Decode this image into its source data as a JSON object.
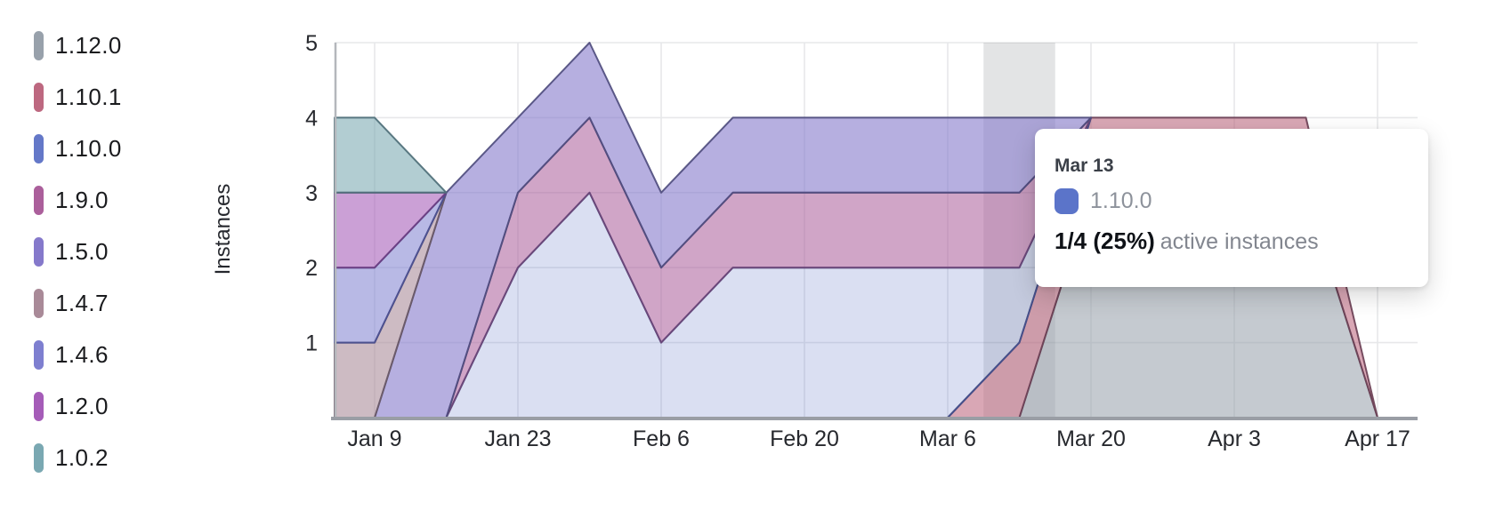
{
  "legend": {
    "items": [
      {
        "label": "1.12.0",
        "color": "#98a1ab"
      },
      {
        "label": "1.10.1",
        "color": "#bd6880"
      },
      {
        "label": "1.10.0",
        "color": "#6478c8"
      },
      {
        "label": "1.9.0",
        "color": "#ab5f9b"
      },
      {
        "label": "1.5.0",
        "color": "#8579cb"
      },
      {
        "label": "1.4.7",
        "color": "#a98a98"
      },
      {
        "label": "1.4.6",
        "color": "#7e7fd0"
      },
      {
        "label": "1.2.0",
        "color": "#a55cb8"
      },
      {
        "label": "1.0.2",
        "color": "#7aa8b2"
      }
    ]
  },
  "tooltip": {
    "date": "Mar 13",
    "series_label": "1.10.0",
    "swatch_color": "#5b74c9",
    "value": "1/4 (25%)",
    "suffix": "active instances"
  },
  "chart_data": {
    "type": "area",
    "stacked": true,
    "stacking": "first series at bottom; order matches legend top-to-bottom",
    "title": "",
    "xlabel": "",
    "ylabel": "Instances",
    "ylim": [
      0,
      5
    ],
    "y_ticks": [
      1,
      2,
      3,
      4,
      5
    ],
    "grid": true,
    "legend_position": "left",
    "x": [
      "Jan 2",
      "Jan 9",
      "Jan 16",
      "Jan 23",
      "Jan 30",
      "Feb 6",
      "Feb 13",
      "Feb 20",
      "Feb 27",
      "Mar 6",
      "Mar 13",
      "Mar 20",
      "Mar 27",
      "Apr 3",
      "Apr 10",
      "Apr 17"
    ],
    "x_tick_labels": [
      "Jan 9",
      "Jan 23",
      "Feb 6",
      "Feb 20",
      "Mar 6",
      "Mar 20",
      "Apr 3",
      "Apr 17"
    ],
    "x_tick_indices": [
      1,
      3,
      5,
      7,
      9,
      11,
      13,
      15
    ],
    "highlight_x": "Mar 13",
    "highlight_index": 10,
    "series": [
      {
        "name": "1.12.0",
        "color": "#98a1ab",
        "edge_color": "#5d6470",
        "fill_alpha": 0.56,
        "values": [
          0,
          0,
          0,
          0,
          0,
          0,
          0,
          0,
          0,
          0,
          0,
          3,
          3,
          3,
          3,
          0
        ]
      },
      {
        "name": "1.10.1",
        "color": "#bd6880",
        "edge_color": "#6d4156",
        "fill_alpha": 0.58,
        "values": [
          0,
          0,
          0,
          0,
          0,
          0,
          0,
          0,
          0,
          0,
          1,
          1,
          1,
          1,
          1,
          0
        ]
      },
      {
        "name": "1.10.0",
        "color": "#6478c8",
        "edge_color": "#41508e",
        "fill_alpha": 0.24,
        "values": [
          0,
          0,
          0,
          2,
          3,
          1,
          2,
          2,
          2,
          2,
          1,
          0,
          0,
          0,
          0,
          0
        ]
      },
      {
        "name": "1.9.0",
        "color": "#ab5f9b",
        "edge_color": "#6a4677",
        "fill_alpha": 0.56,
        "values": [
          0,
          0,
          0,
          1,
          1,
          1,
          1,
          1,
          1,
          1,
          1,
          0,
          0,
          0,
          0,
          0
        ]
      },
      {
        "name": "1.5.0",
        "color": "#8579cb",
        "edge_color": "#4f4d7e",
        "fill_alpha": 0.6,
        "values": [
          0,
          0,
          3,
          1,
          1,
          1,
          1,
          1,
          1,
          1,
          1,
          0,
          0,
          0,
          0,
          0
        ]
      },
      {
        "name": "1.4.7",
        "color": "#a98a98",
        "edge_color": "#6a5a68",
        "fill_alpha": 0.58,
        "values": [
          1,
          1,
          0,
          0,
          0,
          0,
          0,
          0,
          0,
          0,
          0,
          0,
          0,
          0,
          0,
          0
        ]
      },
      {
        "name": "1.4.6",
        "color": "#7e7fd0",
        "edge_color": "#4a4f90",
        "fill_alpha": 0.55,
        "values": [
          1,
          1,
          0,
          0,
          0,
          0,
          0,
          0,
          0,
          0,
          0,
          0,
          0,
          0,
          0,
          0
        ]
      },
      {
        "name": "1.2.0",
        "color": "#a55cb8",
        "edge_color": "#6b3f82",
        "fill_alpha": 0.58,
        "values": [
          1,
          1,
          0,
          0,
          0,
          0,
          0,
          0,
          0,
          0,
          0,
          0,
          0,
          0,
          0,
          0
        ]
      },
      {
        "name": "1.0.2",
        "color": "#7aa8b2",
        "edge_color": "#4e6f78",
        "fill_alpha": 0.58,
        "values": [
          1,
          1,
          0,
          0,
          0,
          0,
          0,
          0,
          0,
          0,
          0,
          0,
          0,
          0,
          0,
          0
        ]
      }
    ]
  }
}
